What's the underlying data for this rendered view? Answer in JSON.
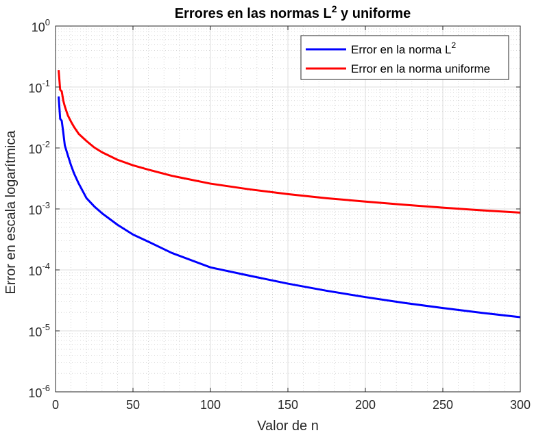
{
  "chart_data": {
    "type": "line",
    "title_main": "Errores en las normas L",
    "title_sup": "2",
    "title_tail": " y uniforme",
    "xlabel": "Valor de n",
    "ylabel": "Error en escala logarítmica",
    "xlim": [
      0,
      300
    ],
    "ylim": [
      1e-06,
      1
    ],
    "yscale": "log",
    "grid": true,
    "minor_grid": true,
    "legend_position": "top-right",
    "x_ticks": [
      "0",
      "50",
      "100",
      "150",
      "200",
      "250",
      "300"
    ],
    "x_tick_values": [
      0,
      50,
      100,
      150,
      200,
      250,
      300
    ],
    "y_ticks": [
      {
        "base": "10",
        "exp": "0",
        "value": 1
      },
      {
        "base": "10",
        "exp": "-1",
        "value": 0.1
      },
      {
        "base": "10",
        "exp": "-2",
        "value": 0.01
      },
      {
        "base": "10",
        "exp": "-3",
        "value": 0.001
      },
      {
        "base": "10",
        "exp": "-4",
        "value": 0.0001
      },
      {
        "base": "10",
        "exp": "-5",
        "value": 1e-05
      },
      {
        "base": "10",
        "exp": "-6",
        "value": 1e-06
      }
    ],
    "series": [
      {
        "name": "Error en la norma L",
        "name_sup": "2",
        "color": "#0000ff",
        "x": [
          2,
          3,
          4,
          5,
          6,
          8,
          10,
          12,
          15,
          20,
          25,
          30,
          40,
          50,
          60,
          75,
          100,
          125,
          150,
          175,
          200,
          225,
          250,
          275,
          300
        ],
        "y": [
          0.07,
          0.03,
          0.028,
          0.018,
          0.011,
          0.0075,
          0.0052,
          0.0038,
          0.0026,
          0.0015,
          0.0011,
          0.00085,
          0.00055,
          0.00038,
          0.00029,
          0.00019,
          0.00011,
          8.05e-05,
          5.95e-05,
          4.55e-05,
          3.58e-05,
          2.88e-05,
          2.37e-05,
          1.98e-05,
          1.68e-05
        ]
      },
      {
        "name": "Error en la norma uniforme",
        "color": "#ff0000",
        "x": [
          2,
          3,
          4,
          5,
          6,
          8,
          10,
          12,
          15,
          20,
          25,
          30,
          40,
          50,
          60,
          75,
          100,
          125,
          150,
          175,
          200,
          225,
          250,
          275,
          300
        ],
        "y": [
          0.19,
          0.09,
          0.085,
          0.06,
          0.048,
          0.034,
          0.027,
          0.022,
          0.017,
          0.013,
          0.0102,
          0.0085,
          0.0064,
          0.0052,
          0.0044,
          0.0035,
          0.0026,
          0.0021,
          0.00175,
          0.0015,
          0.00132,
          0.00117,
          0.00105,
          0.00095,
          0.00087
        ]
      }
    ]
  }
}
